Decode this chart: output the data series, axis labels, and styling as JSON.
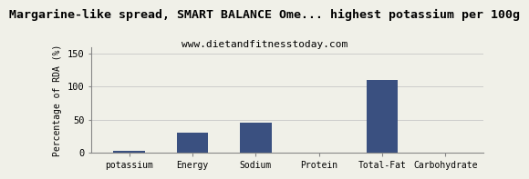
{
  "title": "Margarine-like spread, SMART BALANCE Ome... highest potassium per 100g",
  "subtitle": "www.dietandfitnesstoday.com",
  "categories": [
    "potassium",
    "Energy",
    "Sodium",
    "Protein",
    "Total-Fat",
    "Carbohydrate"
  ],
  "values": [
    3,
    30,
    46,
    0,
    110,
    0
  ],
  "bar_color": "#3a5080",
  "ylabel": "Percentage of RDA (%)",
  "ylim": [
    0,
    160
  ],
  "yticks": [
    0,
    50,
    100,
    150
  ],
  "background_color": "#f0f0e8",
  "title_fontsize": 9.5,
  "subtitle_fontsize": 8,
  "ylabel_fontsize": 7,
  "xtick_fontsize": 7,
  "ytick_fontsize": 7.5
}
